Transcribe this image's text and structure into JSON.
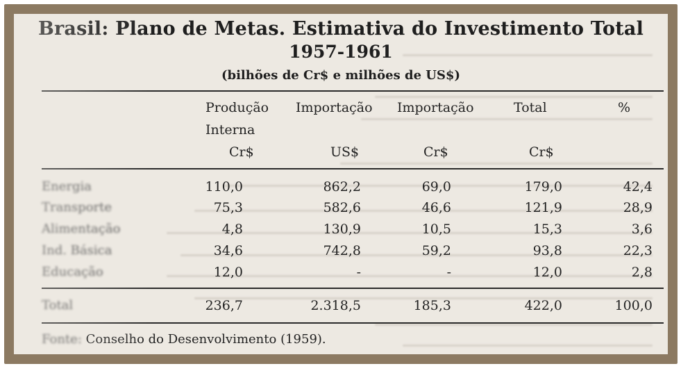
{
  "title": {
    "line1": "Brasil: Plano de Metas. Estimativa do Investimento Total",
    "line2": "1957-1961",
    "line3": "(bilhões de Cr$ e milhões de US$)"
  },
  "table": {
    "headers": {
      "producao": "Produção",
      "interna": "Interna",
      "importacao1": "Importação",
      "importacao2": "Importação",
      "total": "Total",
      "pct": "%"
    },
    "units": {
      "producao": "Cr$",
      "importacao1": "US$",
      "importacao2": "Cr$",
      "total": "Cr$"
    },
    "rows": [
      {
        "label": "Energia",
        "producao": "110,0",
        "imp_us": "862,2",
        "imp_cr": "69,0",
        "total": "179,0",
        "pct": "42,4"
      },
      {
        "label": "Transporte",
        "producao": "75,3",
        "imp_us": "582,6",
        "imp_cr": "46,6",
        "total": "121,9",
        "pct": "28,9"
      },
      {
        "label": "Alimentação",
        "producao": "4,8",
        "imp_us": "130,9",
        "imp_cr": "10,5",
        "total": "15,3",
        "pct": "3,6"
      },
      {
        "label": "Ind. Básica",
        "producao": "34,6",
        "imp_us": "742,8",
        "imp_cr": "59,2",
        "total": "93,8",
        "pct": "22,3"
      },
      {
        "label": "Educação",
        "producao": "12,0",
        "imp_us": "-",
        "imp_cr": "-",
        "total": "12,0",
        "pct": "2,8"
      }
    ],
    "total_row": {
      "label": "Total",
      "producao": "236,7",
      "imp_us": "2.318,5",
      "imp_cr": "185,3",
      "total": "422,0",
      "pct": "100,0"
    }
  },
  "source": {
    "label": "Fonte:",
    "text": "Conselho do Desenvolvimento (1959)."
  }
}
